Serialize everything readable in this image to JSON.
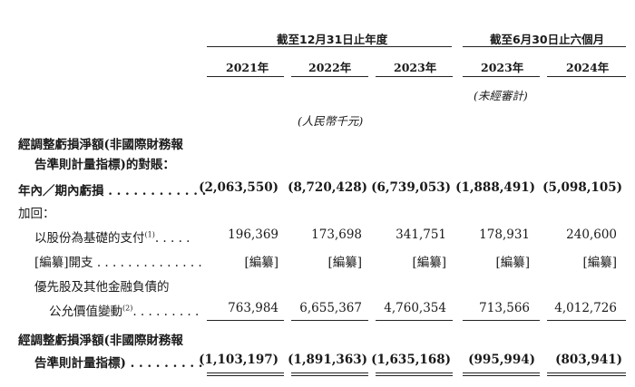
{
  "header": {
    "group_year_end": "截至12月31日止年度",
    "group_six_months": "截至6月30日止六個月",
    "years": [
      "2021年",
      "2022年",
      "2023年",
      "2023年",
      "2024年"
    ],
    "unaudited": "(未經審計)",
    "currency_note": "(人民幣千元)"
  },
  "rows": {
    "section_title_line1": "經調整虧損淨額(非國際財務報",
    "section_title_line2": "告準則計量指標)的對賬：",
    "loss_label": "年內／期內虧損 . . . . . . . . . . . .",
    "loss_values": [
      "(2,063,550)",
      "(8,720,428)",
      "(6,739,053)",
      "(1,888,491)",
      "(5,098,105)"
    ],
    "add_label": "加回：",
    "sbc_label": "以股份為基礎的支付",
    "sbc_sup": "(1)",
    "sbc_dots": ". . . . .",
    "sbc_values": [
      "196,369",
      "173,698",
      "341,751",
      "178,931",
      "240,600"
    ],
    "redacted_label": "[編纂]開支 . . . . . . . . . . . . . .",
    "redacted_values": [
      "[編纂]",
      "[編纂]",
      "[編纂]",
      "[編纂]",
      "[編纂]"
    ],
    "fv_label_line1": "優先股及其他金融負債的",
    "fv_label_line2": "公允價值變動",
    "fv_sup": "(2)",
    "fv_dots": ". . . . . . . . .",
    "fv_values": [
      "763,984",
      "6,655,367",
      "4,760,354",
      "713,566",
      "4,012,726"
    ],
    "total_label_line1": "經調整虧損淨額(非國際財務報",
    "total_label_line2": "告準則計量指標) . . . . . . . . .",
    "total_values": [
      "(1,103,197)",
      "(1,891,363)",
      "(1,635,168)",
      "(995,994)",
      "(803,941)"
    ]
  }
}
